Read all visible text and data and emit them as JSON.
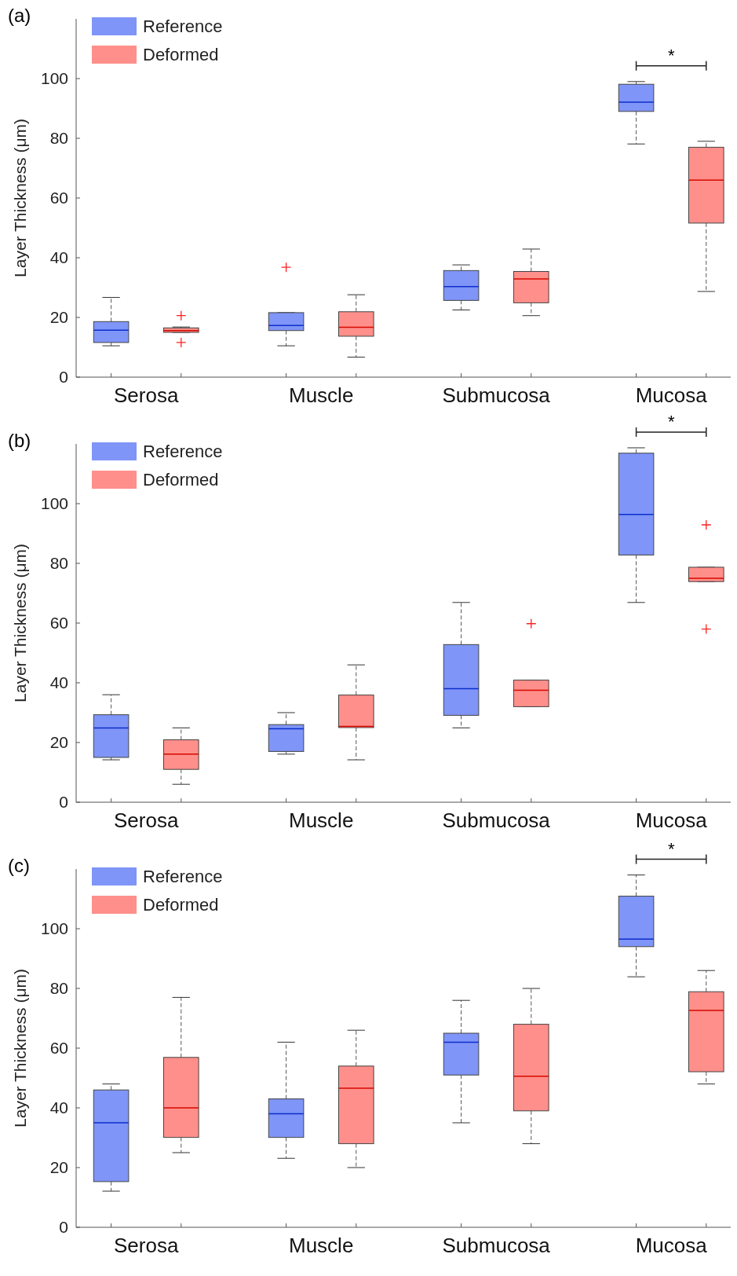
{
  "chart_data": [
    {
      "type": "box",
      "title": "(a)",
      "ylabel": "Layer Thickness (μm)",
      "categories": [
        "Serosa",
        "Muscle",
        "Submucosa",
        "Mucosa"
      ],
      "ylim": [
        0,
        120
      ],
      "yticks": [
        0,
        20,
        40,
        60,
        80,
        100
      ],
      "legend": "top left",
      "annotations": [
        "*"
      ],
      "series": [
        {
          "name": "Reference",
          "color": "#7f95f7",
          "boxes": [
            {
              "low": 10.5,
              "q1": 11.6,
              "median": 15.7,
              "q3": 18.6,
              "high": 26.7
            },
            {
              "low": 10.5,
              "q1": 15.6,
              "median": 17.3,
              "q3": 21.6,
              "high": 21.6,
              "outliers": [
                36.8
              ]
            },
            {
              "low": 22.5,
              "q1": 25.7,
              "median": 30.3,
              "q3": 35.7,
              "high": 37.6
            },
            {
              "low": 78.1,
              "q1": 89,
              "median": 92.1,
              "q3": 98.1,
              "high": 99
            }
          ]
        },
        {
          "name": "Deformed",
          "color": "#ff8f8a",
          "boxes": [
            {
              "low": 15,
              "q1": 15,
              "median": 15.6,
              "q3": 16.5,
              "high": 16.8,
              "outliers": [
                20.6,
                11.6
              ]
            },
            {
              "low": 6.7,
              "q1": 13.7,
              "median": 16.7,
              "q3": 21.9,
              "high": 27.6
            },
            {
              "low": 20.6,
              "q1": 24.9,
              "median": 32.9,
              "q3": 35.4,
              "high": 42.9
            },
            {
              "low": 28.7,
              "q1": 51.6,
              "median": 66,
              "q3": 77,
              "high": 79
            }
          ]
        }
      ]
    },
    {
      "type": "box",
      "title": "(b)",
      "ylabel": "Layer Thickness (μm)",
      "categories": [
        "Serosa",
        "Muscle",
        "Submucosa",
        "Mucosa"
      ],
      "ylim": [
        0,
        120
      ],
      "yticks": [
        0,
        20,
        40,
        60,
        80,
        100
      ],
      "legend": "top left",
      "annotations": [
        "*"
      ],
      "series": [
        {
          "name": "Reference",
          "color": "#7f95f7",
          "boxes": [
            {
              "low": 14.2,
              "q1": 15,
              "median": 24.9,
              "q3": 29.3,
              "high": 36
            },
            {
              "low": 16.1,
              "q1": 17,
              "median": 24.6,
              "q3": 26,
              "high": 30
            },
            {
              "low": 24.9,
              "q1": 29.1,
              "median": 38,
              "q3": 52.8,
              "high": 66.9
            },
            {
              "low": 66.9,
              "q1": 82.8,
              "median": 96.4,
              "q3": 116.9,
              "high": 118.7
            }
          ]
        },
        {
          "name": "Deformed",
          "color": "#ff8f8a",
          "boxes": [
            {
              "low": 6,
              "q1": 11,
              "median": 16.1,
              "q3": 20.9,
              "high": 24.9
            },
            {
              "low": 14.2,
              "q1": 25,
              "median": 25.4,
              "q3": 35.9,
              "high": 46
            },
            {
              "low": 32,
              "q1": 32,
              "median": 37.5,
              "q3": 40.9,
              "high": 40.9,
              "outliers": [
                59.8
              ]
            },
            {
              "low": 73.9,
              "q1": 73.9,
              "median": 75,
              "q3": 78.7,
              "high": 78.7,
              "outliers": [
                92.9,
                58
              ]
            }
          ]
        }
      ]
    },
    {
      "type": "box",
      "title": "(c)",
      "ylabel": "Layer Thickness (μm)",
      "categories": [
        "Serosa",
        "Muscle",
        "Submucosa",
        "Mucosa"
      ],
      "ylim": [
        0,
        120
      ],
      "yticks": [
        0,
        20,
        40,
        60,
        80,
        100
      ],
      "legend": "top left",
      "annotations": [
        "*"
      ],
      "series": [
        {
          "name": "Reference",
          "color": "#7f95f7",
          "boxes": [
            {
              "low": 12.1,
              "q1": 15.3,
              "median": 35,
              "q3": 46,
              "high": 48
            },
            {
              "low": 23.1,
              "q1": 30.1,
              "median": 38,
              "q3": 43,
              "high": 62
            },
            {
              "low": 35,
              "q1": 51,
              "median": 62,
              "q3": 65,
              "high": 76
            },
            {
              "low": 83.9,
              "q1": 94,
              "median": 96.5,
              "q3": 110.9,
              "high": 118
            }
          ]
        },
        {
          "name": "Deformed",
          "color": "#ff8f8a",
          "boxes": [
            {
              "low": 25,
              "q1": 30.1,
              "median": 40,
              "q3": 56.9,
              "high": 77
            },
            {
              "low": 20,
              "q1": 28,
              "median": 46.6,
              "q3": 54,
              "high": 66
            },
            {
              "low": 28,
              "q1": 39,
              "median": 50.6,
              "q3": 68,
              "high": 80
            },
            {
              "low": 48,
              "q1": 52.1,
              "median": 72.6,
              "q3": 78.9,
              "high": 86
            }
          ]
        }
      ]
    }
  ]
}
